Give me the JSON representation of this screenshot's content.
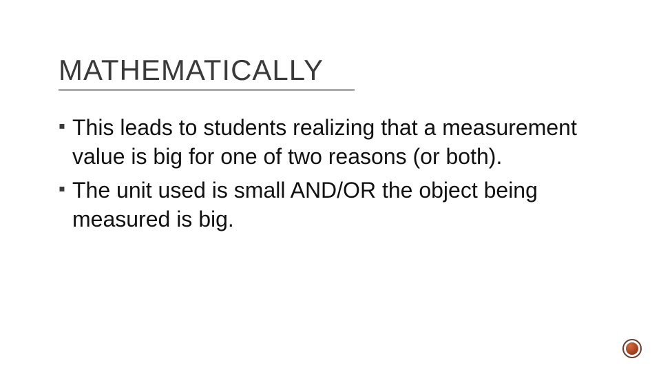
{
  "slide": {
    "title": "MATHEMATICALLY",
    "title_color": "#3a3a3a",
    "title_fontsize": 42,
    "underline_color": "#a9a9a9",
    "bullets": [
      {
        "marker": "▪",
        "text": "This leads to students realizing that a measurement value is big for one of two reasons (or both)."
      },
      {
        "marker": "▪",
        "text": "The unit used is small AND/OR the object being measured is big."
      }
    ],
    "body_fontsize": 32,
    "body_color": "#111111",
    "bullet_marker_color": "#3a3a3a",
    "background_color": "#ffffff",
    "badge": {
      "ring_color": "#6b3a2a",
      "fill_start": "#d46a3a",
      "fill_end": "#6b2a14"
    }
  }
}
